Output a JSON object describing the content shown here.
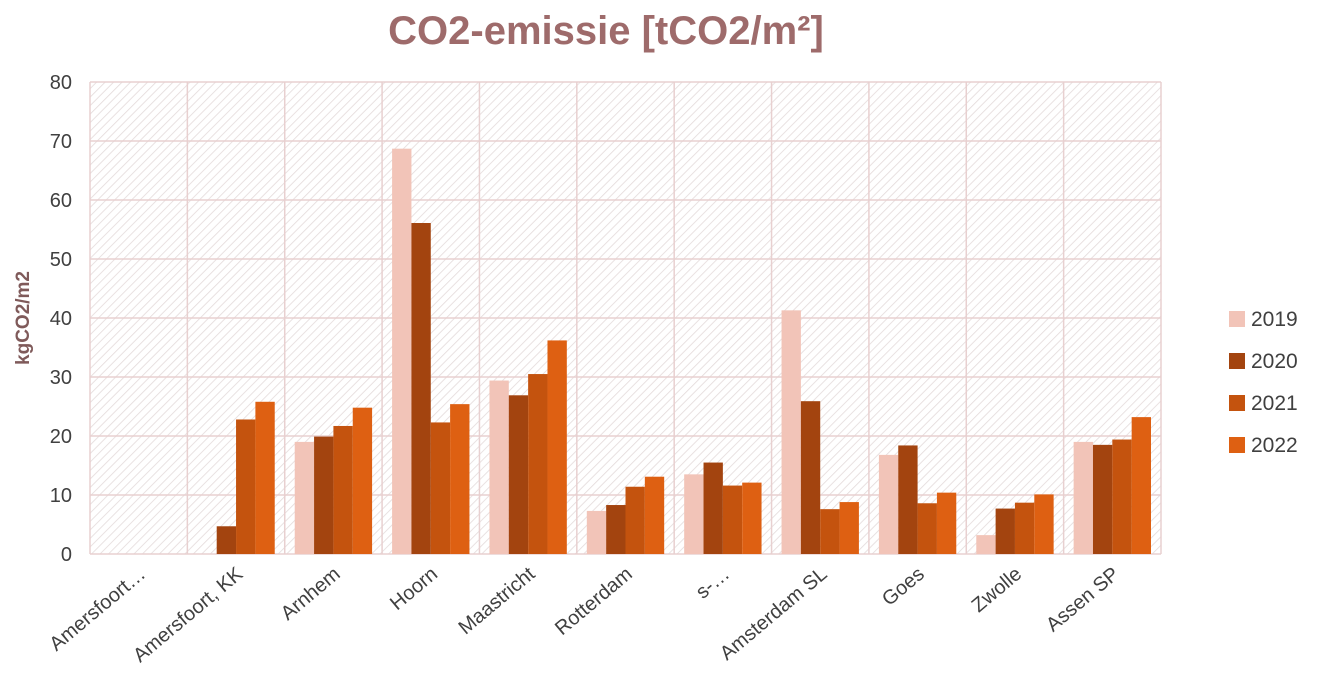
{
  "chart_data": {
    "type": "bar",
    "title": "CO2-emissie [tCO2/m²]",
    "xlabel": "",
    "ylabel": "kgCO2/m2",
    "ylim": [
      0,
      80
    ],
    "yticks": [
      0,
      10,
      20,
      30,
      40,
      50,
      60,
      70,
      80
    ],
    "grid": true,
    "legend_position": "right",
    "categories": [
      "Amersfoort…",
      "Amersfoort, KK",
      "Arnhem",
      "Hoorn",
      "Maastricht",
      "Rotterdam",
      "s-…",
      "Amsterdam SL",
      "Goes",
      "Zwolle",
      "Assen SP"
    ],
    "series": [
      {
        "name": "2019",
        "color": "#f2c4b8",
        "values": [
          0,
          0,
          19,
          68.7,
          29.4,
          7.3,
          13.5,
          41.3,
          16.8,
          3.2,
          19
        ]
      },
      {
        "name": "2020",
        "color": "#a3440f",
        "values": [
          0,
          4.7,
          19.9,
          56.1,
          26.9,
          8.3,
          15.5,
          25.9,
          18.4,
          7.7,
          18.5
        ]
      },
      {
        "name": "2021",
        "color": "#c4530e",
        "values": [
          0,
          22.8,
          21.7,
          22.3,
          30.5,
          11.4,
          11.6,
          7.6,
          8.6,
          8.7,
          19.4
        ]
      },
      {
        "name": "2022",
        "color": "#de6012",
        "values": [
          0,
          25.8,
          24.8,
          25.4,
          36.2,
          13.1,
          12.1,
          8.8,
          10.4,
          10.1,
          23.2
        ]
      }
    ]
  }
}
